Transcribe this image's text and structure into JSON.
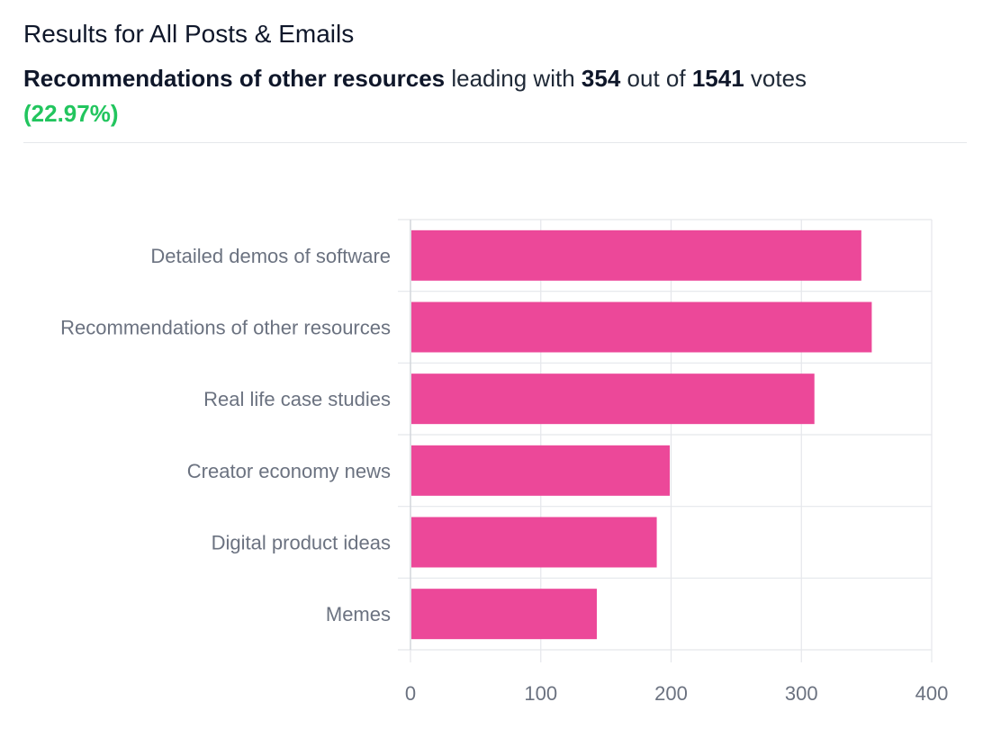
{
  "header": {
    "title": "Results for All Posts & Emails",
    "leader": "Recommendations of other resources",
    "leading_text": "leading with",
    "leader_votes": "354",
    "out_of_text": "out of",
    "total_votes": "1541",
    "votes_text": "votes",
    "leader_percent": "(22.97%)"
  },
  "chart_data": {
    "type": "bar",
    "orientation": "horizontal",
    "categories": [
      "Detailed demos of software",
      "Recommendations of other resources",
      "Real life case studies",
      "Creator economy news",
      "Digital product ideas",
      "Memes"
    ],
    "values": [
      346,
      354,
      310,
      199,
      189,
      143
    ],
    "title": "",
    "xlabel": "",
    "ylabel": "",
    "xlim": [
      0,
      400
    ],
    "xticks": [
      0,
      100,
      200,
      300,
      400
    ],
    "grid": true,
    "bar_color": "#ec4899"
  }
}
